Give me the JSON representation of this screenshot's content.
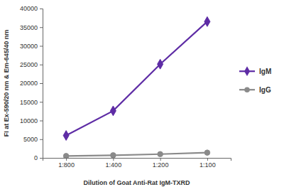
{
  "chart_data": {
    "type": "line",
    "x_label": "Dilution of Goat Anti-Rat IgM-TXRD",
    "y_label": "FI at Ex-590/20 nm & Em-645/40 nm",
    "categories": [
      "1:800",
      "1:400",
      "1:200",
      "1:100"
    ],
    "series": [
      {
        "name": "IgM",
        "color": "#5e2ca5",
        "marker": "diamond",
        "values": [
          6000,
          12600,
          25100,
          36500
        ]
      },
      {
        "name": "IgG",
        "color": "#8a8a8a",
        "marker": "circle",
        "values": [
          500,
          700,
          1000,
          1400
        ]
      }
    ],
    "ylim": [
      0,
      40000
    ],
    "yticks": [
      0,
      5000,
      10000,
      15000,
      20000,
      25000,
      30000,
      35000,
      40000
    ],
    "grid": false,
    "legend": "right"
  }
}
